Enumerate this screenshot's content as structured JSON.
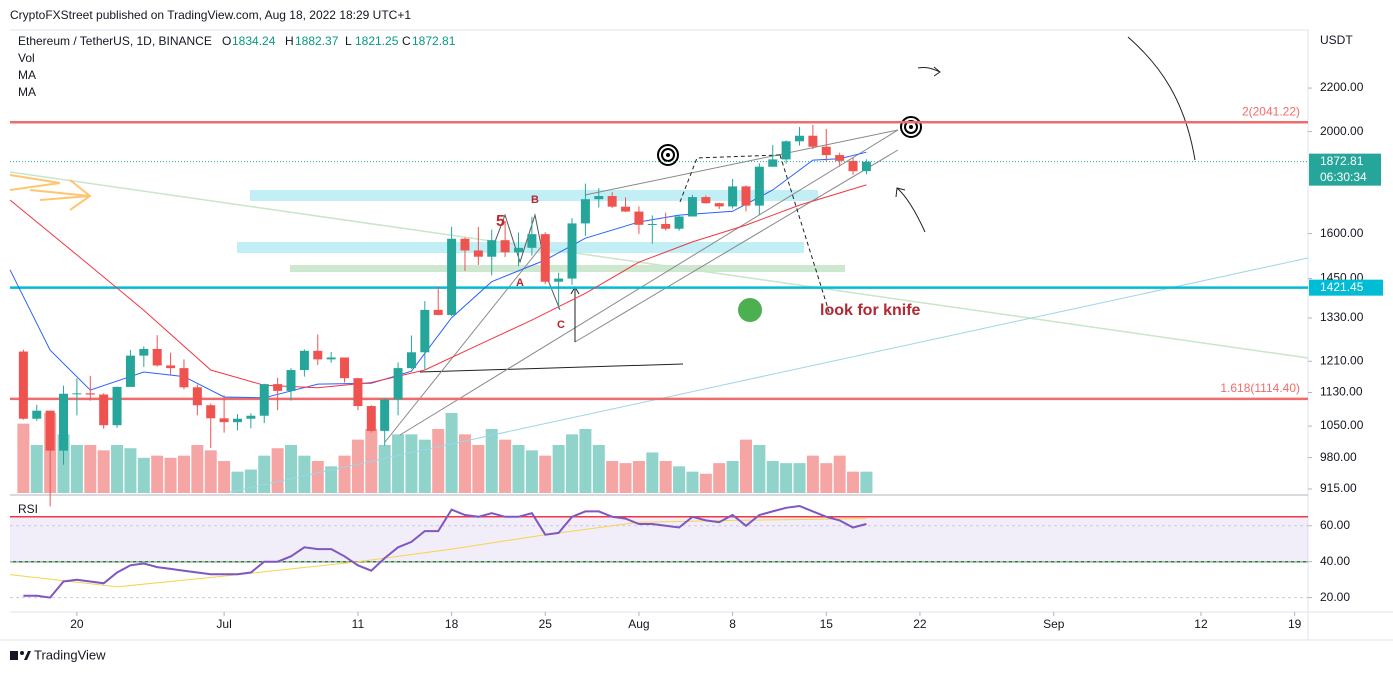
{
  "chart_data": {
    "type": "candlestick",
    "header": "CryptoFXStreet published on TradingView.com, Aug 18, 2022 18:29 UTC+1",
    "title": "Ethereum / TetherUS, 1D, BINANCE",
    "ohlc_labels": [
      "O",
      "H",
      "L",
      "C"
    ],
    "volume_label": "Vol",
    "currency": "USDT",
    "countdown": "06:30:34",
    "brand": "TradingView",
    "up_color": "#26a69a",
    "down_color": "#ef5350",
    "volume_up_color": "#8fd3cb",
    "volume_down_color": "#f6a5a5",
    "dates": [
      "2022-06-16",
      "2022-06-17",
      "2022-06-18",
      "2022-06-19",
      "2022-06-20",
      "2022-06-21",
      "2022-06-22",
      "2022-06-23",
      "2022-06-24",
      "2022-06-25",
      "2022-06-26",
      "2022-06-27",
      "2022-06-28",
      "2022-06-29",
      "2022-06-30",
      "2022-07-01",
      "2022-07-02",
      "2022-07-03",
      "2022-07-04",
      "2022-07-05",
      "2022-07-06",
      "2022-07-07",
      "2022-07-08",
      "2022-07-09",
      "2022-07-10",
      "2022-07-11",
      "2022-07-12",
      "2022-07-13",
      "2022-07-14",
      "2022-07-15",
      "2022-07-16",
      "2022-07-17",
      "2022-07-18",
      "2022-07-19",
      "2022-07-20",
      "2022-07-21",
      "2022-07-22",
      "2022-07-23",
      "2022-07-24",
      "2022-07-25",
      "2022-07-26",
      "2022-07-27",
      "2022-07-28",
      "2022-07-29",
      "2022-07-30",
      "2022-07-31",
      "2022-08-01",
      "2022-08-02",
      "2022-08-03",
      "2022-08-04",
      "2022-08-05",
      "2022-08-06",
      "2022-08-07",
      "2022-08-08",
      "2022-08-09",
      "2022-08-10",
      "2022-08-11",
      "2022-08-12",
      "2022-08-13",
      "2022-08-14",
      "2022-08-15",
      "2022-08-16",
      "2022-08-17",
      "2022-08-18"
    ],
    "open": [
      1236,
      1067,
      1086,
      995,
      1127,
      1128,
      1125,
      1052,
      1144,
      1225,
      1243,
      1199,
      1192,
      1143,
      1099,
      1068,
      1059,
      1067,
      1074,
      1151,
      1134,
      1187,
      1238,
      1215,
      1220,
      1166,
      1097,
      1039,
      1113,
      1192,
      1234,
      1354,
      1339,
      1582,
      1542,
      1521,
      1577,
      1536,
      1551,
      1598,
      1440,
      1450,
      1636,
      1725,
      1737,
      1697,
      1679,
      1631,
      1634,
      1617,
      1661,
      1733,
      1710,
      1698,
      1774,
      1701,
      1852,
      1882,
      1958,
      1982,
      1935,
      1900,
      1876,
      1834.24
    ],
    "high": [
      1241,
      1100,
      1086,
      1147,
      1165,
      1172,
      1128,
      1145,
      1240,
      1250,
      1281,
      1233,
      1215,
      1150,
      1103,
      1123,
      1078,
      1080,
      1152,
      1167,
      1192,
      1242,
      1283,
      1235,
      1220,
      1167,
      1099,
      1116,
      1207,
      1280,
      1380,
      1426,
      1624,
      1586,
      1623,
      1614,
      1645,
      1604,
      1660,
      1605,
      1469,
      1655,
      1785,
      1767,
      1752,
      1732,
      1698,
      1665,
      1675,
      1666,
      1742,
      1739,
      1712,
      1803,
      1778,
      1866,
      1942,
      1962,
      2020,
      2030,
      2012,
      1910,
      1890,
      1882.37
    ],
    "low": [
      1065,
      1062,
      881,
      965,
      1075,
      1110,
      1044,
      1046,
      1144,
      1195,
      1196,
      1175,
      1138,
      1075,
      1001,
      1035,
      1040,
      1045,
      1057,
      1087,
      1110,
      1170,
      1200,
      1206,
      1155,
      1087,
      1035,
      1006,
      1075,
      1190,
      1189,
      1337,
      1336,
      1475,
      1494,
      1460,
      1520,
      1490,
      1525,
      1433,
      1357,
      1430,
      1592,
      1694,
      1692,
      1677,
      1599,
      1565,
      1611,
      1610,
      1661,
      1708,
      1688,
      1690,
      1680,
      1667,
      1852,
      1865,
      1940,
      1925,
      1874,
      1853,
      1820,
      1821.25
    ],
    "close": [
      1067,
      1086,
      995,
      1127,
      1128,
      1125,
      1052,
      1144,
      1225,
      1243,
      1199,
      1192,
      1143,
      1099,
      1068,
      1059,
      1067,
      1074,
      1151,
      1134,
      1187,
      1238,
      1215,
      1220,
      1166,
      1097,
      1039,
      1113,
      1192,
      1234,
      1354,
      1339,
      1582,
      1542,
      1521,
      1577,
      1536,
      1551,
      1598,
      1440,
      1450,
      1636,
      1725,
      1737,
      1697,
      1679,
      1631,
      1634,
      1617,
      1661,
      1733,
      1710,
      1698,
      1774,
      1701,
      1852,
      1882,
      1958,
      1982,
      1935,
      1900,
      1876,
      1834,
      1872.81
    ],
    "volume": [
      65,
      45,
      75,
      55,
      45,
      45,
      40,
      45,
      42,
      33,
      35,
      33,
      35,
      45,
      40,
      30,
      20,
      22,
      35,
      42,
      45,
      35,
      30,
      25,
      35,
      50,
      60,
      45,
      55,
      55,
      50,
      60,
      75,
      55,
      45,
      60,
      50,
      45,
      40,
      35,
      45,
      55,
      60,
      45,
      30,
      28,
      30,
      38,
      30,
      25,
      20,
      18,
      28,
      30,
      50,
      45,
      30,
      28,
      28,
      35,
      28,
      35,
      20,
      20
    ],
    "ma": [
      {
        "name": "MA",
        "color": "#2962ff",
        "x": [
          "2022-06-15",
          "2022-06-18",
          "2022-06-21",
          "2022-06-25",
          "2022-06-28",
          "2022-07-01",
          "2022-07-04",
          "2022-07-08",
          "2022-07-12",
          "2022-07-15",
          "2022-07-18",
          "2022-07-21",
          "2022-07-25",
          "2022-07-28",
          "2022-08-01",
          "2022-08-04",
          "2022-08-08",
          "2022-08-11",
          "2022-08-14",
          "2022-08-16",
          "2022-08-18"
        ],
        "values": [
          1478,
          1240,
          1136,
          1182,
          1170,
          1119,
          1117,
          1151,
          1153,
          1184,
          1331,
          1440,
          1510,
          1584,
          1641,
          1666,
          1680,
          1760,
          1879,
          1885,
          1912
        ]
      },
      {
        "name": "MA",
        "color": "#f23645",
        "x": [
          "2022-06-15",
          "2022-06-20",
          "2022-06-25",
          "2022-06-30",
          "2022-07-04",
          "2022-07-08",
          "2022-07-12",
          "2022-07-16",
          "2022-07-20",
          "2022-07-24",
          "2022-07-28",
          "2022-08-01",
          "2022-08-05",
          "2022-08-09",
          "2022-08-13",
          "2022-08-18"
        ],
        "values": [
          1722,
          1527,
          1353,
          1187,
          1148,
          1142,
          1155,
          1187,
          1254,
          1324,
          1404,
          1503,
          1571,
          1630,
          1703,
          1780
        ]
      }
    ],
    "levels": [
      {
        "value": 2041.22,
        "label": "2(2041.22)",
        "color": "#f06c6c"
      },
      {
        "value": 1114.4,
        "label": "1.618(1114.40)",
        "color": "#f06c6c"
      },
      {
        "value": 1421.45,
        "color": "#00bcd4"
      }
    ],
    "annotations": [
      "look for knife",
      "5",
      "A",
      "B",
      "C"
    ],
    "log": true,
    "ylim": [
      903,
      2498
    ],
    "yticks": [
      {
        "value": 915,
        "label": "915.00"
      },
      {
        "value": 980,
        "label": "980.00"
      },
      {
        "value": 1050,
        "label": "1050.00"
      },
      {
        "value": 1130,
        "label": "1130.00"
      },
      {
        "value": 1210,
        "label": "1210.00"
      },
      {
        "value": 1330,
        "label": "1330.00"
      },
      {
        "value": 1450,
        "label": "1450.00"
      },
      {
        "value": 1600,
        "label": "1600.00"
      },
      {
        "value": 2000,
        "label": "2000.00"
      },
      {
        "value": 2200,
        "label": "2200.00"
      }
    ],
    "xlim": [
      "2022-06-15",
      "2022-09-20"
    ],
    "xticks": [
      {
        "value": "2022-06-20",
        "label": "20"
      },
      {
        "value": "2022-07-01",
        "label": "Jul"
      },
      {
        "value": "2022-07-11",
        "label": "11"
      },
      {
        "value": "2022-07-18",
        "label": "18"
      },
      {
        "value": "2022-07-25",
        "label": "25"
      },
      {
        "value": "2022-08-01",
        "label": "Aug"
      },
      {
        "value": "2022-08-08",
        "label": "8"
      },
      {
        "value": "2022-08-15",
        "label": "15"
      },
      {
        "value": "2022-08-22",
        "label": "22"
      },
      {
        "value": "2022-09-01",
        "label": "Sep"
      },
      {
        "value": "2022-09-12",
        "label": "12"
      },
      {
        "value": "2022-09-19",
        "label": "19"
      }
    ],
    "rsi": {
      "name": "RSI",
      "color": "#7e57c2",
      "values": [
        21,
        21,
        20,
        29,
        30,
        29,
        28,
        34,
        38,
        39,
        37,
        36,
        35,
        34,
        33,
        33,
        33,
        34,
        40,
        40,
        43,
        48,
        47,
        47,
        43,
        38,
        35,
        42,
        48,
        51,
        57,
        57,
        69,
        66,
        65,
        67,
        65,
        65,
        67,
        55,
        56,
        65,
        68,
        68,
        65,
        64,
        61,
        61,
        60,
        59,
        65,
        63,
        62,
        66,
        60,
        66,
        68,
        70,
        71,
        68,
        65,
        63,
        59,
        61
      ],
      "ma": {
        "color": "#f5d44f",
        "x": [
          "2022-06-15",
          "2022-06-23",
          "2022-07-01",
          "2022-07-11",
          "2022-07-18",
          "2022-07-25",
          "2022-08-01",
          "2022-08-08",
          "2022-08-18"
        ],
        "values": [
          32.8,
          26,
          32,
          40,
          47,
          55,
          62,
          63,
          64
        ]
      },
      "bands": [
        65,
        40
      ],
      "band_colors": [
        "#f23645",
        "#2e7d32"
      ],
      "ylim": [
        12,
        76
      ],
      "yticks": [
        {
          "value": 20,
          "label": "20.00"
        },
        {
          "value": 40,
          "label": "40.00"
        },
        {
          "value": 60,
          "label": "60.00"
        }
      ]
    }
  }
}
